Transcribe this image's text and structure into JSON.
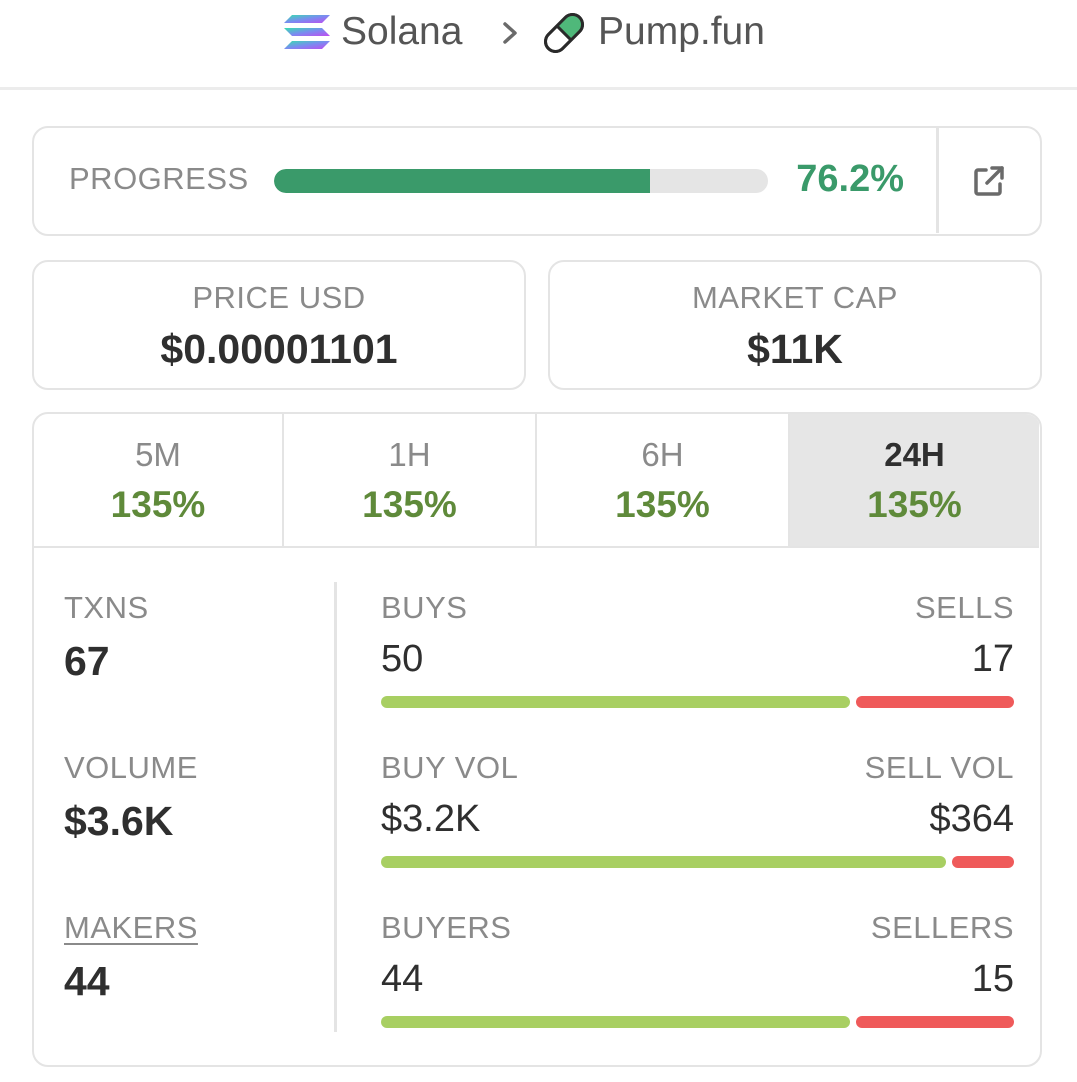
{
  "breadcrumb": {
    "chain": "Solana",
    "dex": "Pump.fun",
    "chain_icon": "solana-logo-icon",
    "separator_icon": "chevron-right-icon",
    "dex_icon": "pill-icon"
  },
  "progress": {
    "label": "PROGRESS",
    "value": 0.762,
    "value_text": "76.2%",
    "external_icon": "external-link-icon"
  },
  "price": {
    "label": "PRICE USD",
    "value": "$0.00001101"
  },
  "market_cap": {
    "label": "MARKET CAP",
    "value": "$11K"
  },
  "timeframes": [
    {
      "label": "5M",
      "change": "135%"
    },
    {
      "label": "1H",
      "change": "135%"
    },
    {
      "label": "6H",
      "change": "135%"
    },
    {
      "label": "24H",
      "change": "135%",
      "selected": true
    }
  ],
  "stats": {
    "txns": {
      "label": "TXNS",
      "value": "67"
    },
    "volume": {
      "label": "VOLUME",
      "value": "$3.6K"
    },
    "makers": {
      "label": "MAKERS",
      "value": "44"
    }
  },
  "breakdown": {
    "txns": {
      "buy_label": "BUYS",
      "sell_label": "SELLS",
      "buy_value": "50",
      "sell_value": "17",
      "buy_share": 0.746
    },
    "volume": {
      "buy_label": "BUY VOL",
      "sell_label": "SELL VOL",
      "buy_value": "$3.2K",
      "sell_value": "$364",
      "buy_share": 0.898
    },
    "makers": {
      "buy_label": "BUYERS",
      "sell_label": "SELLERS",
      "buy_value": "44",
      "sell_value": "15",
      "buy_share": 0.746
    }
  },
  "colors": {
    "progress": "#3a9a6a",
    "positive_change": "#5f8a3a",
    "buy_bar": "#a8cf62",
    "sell_bar": "#ef5a5a",
    "active_tab": "#e6e6e6"
  }
}
